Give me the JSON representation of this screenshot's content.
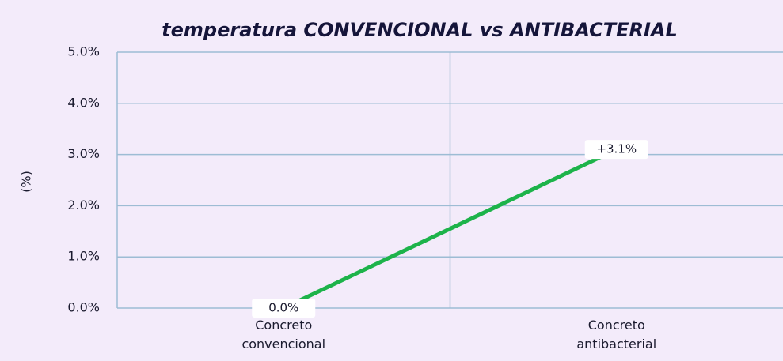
{
  "chart_data": {
    "type": "line",
    "title": "temperatura CONVENCIONAL vs ANTIBACTERIAL",
    "y_label": "(%)",
    "categories": [
      "Concreto convencional",
      "Concreto antibacterial"
    ],
    "values": [
      0,
      3.1
    ],
    "value_labels": [
      "0.0%",
      "+3.1%"
    ],
    "color": "#1db34a",
    "ylim": [
      0,
      5
    ],
    "yticks": [
      {
        "value": 0,
        "label": "0.0%"
      },
      {
        "value": 1,
        "label": "1.0%"
      },
      {
        "value": 2,
        "label": "2.0%"
      },
      {
        "value": 3,
        "label": "3.0%"
      },
      {
        "value": 4,
        "label": "4.0%"
      },
      {
        "value": 5,
        "label": "5.0%"
      }
    ],
    "grid": true
  }
}
